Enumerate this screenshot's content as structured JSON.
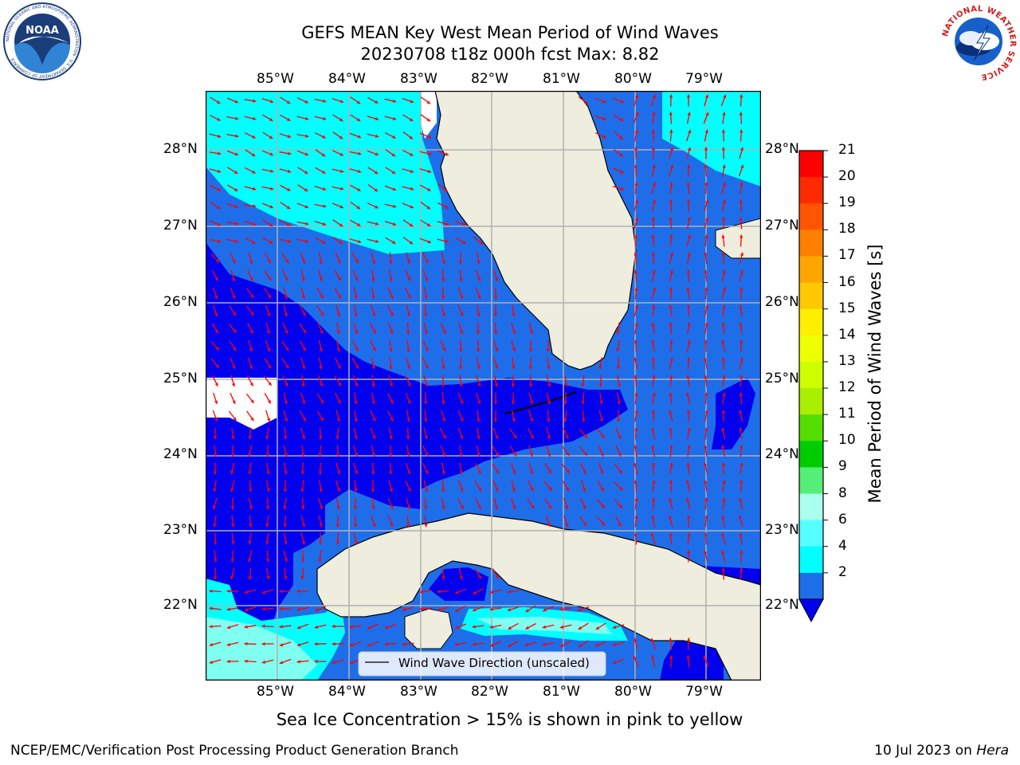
{
  "title": {
    "line1": "GEFS MEAN Key West Mean Period of Wind Waves",
    "line2": "20230708 t18z 000h fcst   Max: 8.82"
  },
  "map": {
    "lon_labels": [
      "85°W",
      "84°W",
      "83°W",
      "82°W",
      "81°W",
      "80°W",
      "79°W"
    ],
    "lat_labels": [
      "28°N",
      "27°N",
      "26°N",
      "25°N",
      "24°N",
      "23°N",
      "22°N"
    ],
    "legend_label": "Wind Wave Direction (unscaled)",
    "colors": {
      "ocean_dark": "#0000ee",
      "ocean_mid": "#1e6eea",
      "ocean_light": "#00ffff",
      "ocean_pale": "#7fffef",
      "land": "#eeedde",
      "grid": "#b0b0b0",
      "arrow": "#ff0000"
    }
  },
  "colorbar": {
    "label": "Mean Period of Wind Waves [s]",
    "ticks": [
      "21",
      "20",
      "19",
      "18",
      "17",
      "16",
      "15",
      "14",
      "13",
      "12",
      "11",
      "10",
      "9",
      "8",
      "6",
      "4",
      "2"
    ],
    "colors_top_to_bottom": [
      "#ff0000",
      "#ff2a00",
      "#ff5500",
      "#ff7f00",
      "#ffa500",
      "#ffc800",
      "#ffee00",
      "#eeff00",
      "#ccff00",
      "#aaee00",
      "#55dd00",
      "#00cc00",
      "#55ee77",
      "#aaffee",
      "#55ffff",
      "#00ffff",
      "#1e6eea"
    ]
  },
  "caption": "Sea Ice Concentration > 15% is shown in pink to yellow",
  "footer": {
    "left": "NCEP/EMC/Verification Post Processing Product Generation Branch",
    "date": "10 Jul 2023 on ",
    "host": "Hera"
  },
  "logos": {
    "noaa_text": "NOAA",
    "noaa_ring": "NATIONAL OCEANIC AND ATMOSPHERIC ADMINISTRATION · U.S. DEPARTMENT OF COMMERCE",
    "nws_ring": "NATIONAL WEATHER SERVICE"
  }
}
